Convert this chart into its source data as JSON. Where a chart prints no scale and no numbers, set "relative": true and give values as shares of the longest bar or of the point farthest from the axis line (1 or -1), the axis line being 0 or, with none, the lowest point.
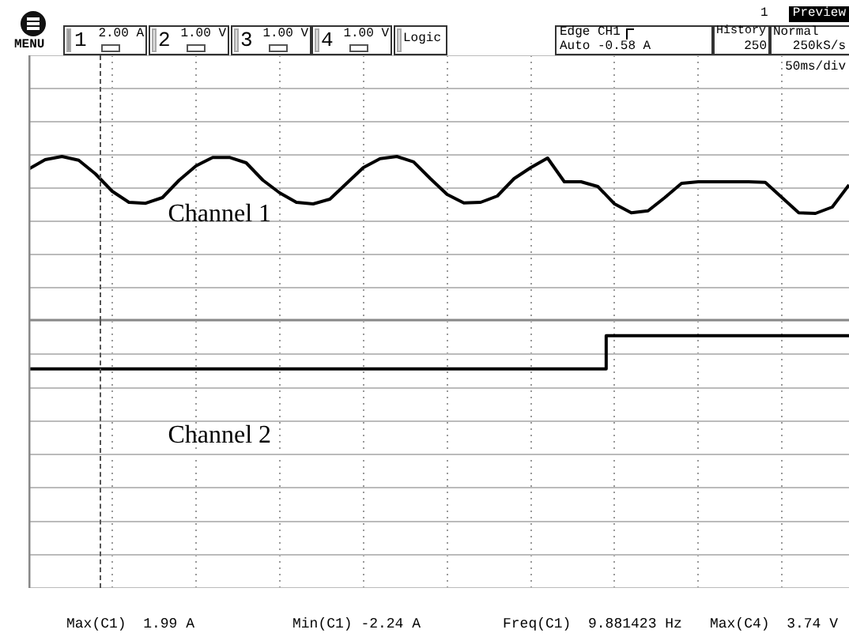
{
  "chart_data": [
    {
      "type": "line",
      "relative": true,
      "categories": [
        null,
        null,
        null,
        null,
        null,
        null,
        null,
        null,
        null,
        null,
        null,
        null,
        null,
        null,
        null,
        null,
        null,
        null,
        null,
        null,
        null,
        null,
        null,
        null,
        null,
        null,
        null,
        null,
        null,
        null,
        null,
        null,
        null,
        null,
        null,
        null,
        null,
        null,
        null,
        null,
        null,
        null,
        null,
        null,
        null,
        null,
        null,
        null,
        null,
        null
      ],
      "series": [
        {
          "name": "Channel 1",
          "color": "#000000",
          "values": [
            0.6,
            0.9,
            1,
            0.88,
            0.45,
            -0.1,
            -0.45,
            -0.48,
            -0.3,
            0.25,
            0.7,
            0.97,
            0.97,
            0.8,
            0.25,
            -0.15,
            -0.45,
            -0.5,
            -0.35,
            0.15,
            0.65,
            0.93,
            1,
            0.83,
            0.3,
            -0.2,
            -0.47,
            -0.45,
            -0.25,
            0.3,
            0.65,
            0.95,
            0.2,
            0.2,
            0.05,
            -0.5,
            -0.78,
            -0.72,
            -0.3,
            0.15,
            0.2,
            0.2,
            0.2,
            0.2,
            0.18,
            -0.3,
            -0.78,
            -0.8,
            -0.6,
            0.1
          ]
        }
      ],
      "grid": true,
      "marker": "none",
      "annotations": [
        "MENU",
        "1",
        "2.00 A",
        "2",
        "1.00 V",
        "3",
        "1.00 V",
        "4",
        "1.00 V",
        "Logic",
        "Edge CH1",
        "Auto -0.58 A",
        "History",
        "250",
        "Normal",
        "250kS/s",
        "1",
        "Preview",
        "50ms/div"
      ]
    },
    {
      "type": "step",
      "relative": true,
      "categories": [
        null,
        null,
        null,
        null,
        null,
        null,
        null,
        null,
        null,
        null,
        null,
        null,
        null,
        null,
        null,
        null,
        null,
        null,
        null,
        null,
        null,
        null,
        null,
        null,
        null,
        null,
        null,
        null,
        null,
        null,
        null,
        null,
        null,
        null,
        null,
        null,
        null,
        null,
        null,
        null,
        null,
        null,
        null,
        null,
        null,
        null,
        null,
        null,
        null,
        null
      ],
      "series": [
        {
          "name": "Channel 2",
          "color": "#000000",
          "values": [
            0.72,
            0.72,
            0.72,
            0.72,
            0.72,
            0.72,
            0.72,
            0.72,
            0.72,
            0.72,
            0.72,
            0.72,
            0.72,
            0.72,
            0.72,
            0.72,
            0.72,
            0.72,
            0.72,
            0.72,
            0.72,
            0.72,
            0.72,
            0.72,
            0.72,
            0.72,
            0.72,
            0.72,
            0.72,
            0.72,
            0.72,
            0.72,
            0.72,
            0.72,
            0.72,
            1,
            1,
            1,
            1,
            1,
            1,
            1,
            1,
            1,
            1,
            1,
            1,
            1,
            1,
            1
          ]
        }
      ],
      "grid": true,
      "marker": "none",
      "annotations": [
        "Max(C1)  1.99 A",
        "Min(C1) -2.24 A",
        "Freq(C1)  9.881423 Hz",
        "Max(C4)  3.74 V"
      ]
    }
  ]
}
